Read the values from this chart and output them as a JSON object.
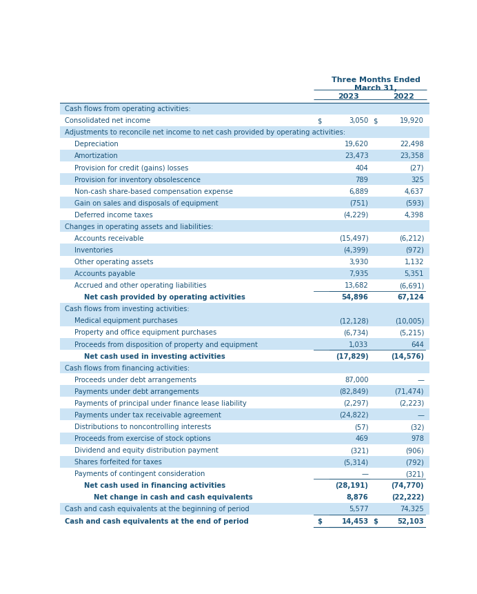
{
  "header_line1": "Three Months Ended",
  "header_line2": "March 31,",
  "col2023": "2023",
  "col2022": "2022",
  "rows": [
    {
      "label": "Cash flows from operating activities:",
      "val2023": "",
      "val2022": "",
      "indent": 0,
      "style": "section",
      "highlight": true,
      "top_border": true
    },
    {
      "label": "Consolidated net income",
      "val2023": "3,050",
      "val2022": "19,920",
      "indent": 0,
      "style": "normal",
      "highlight": false,
      "dollar2023": true,
      "dollar2022": true
    },
    {
      "label": "Adjustments to reconcile net income to net cash provided by operating activities:",
      "val2023": "",
      "val2022": "",
      "indent": 0,
      "style": "section",
      "highlight": true
    },
    {
      "label": "Depreciation",
      "val2023": "19,620",
      "val2022": "22,498",
      "indent": 1,
      "style": "normal",
      "highlight": false
    },
    {
      "label": "Amortization",
      "val2023": "23,473",
      "val2022": "23,358",
      "indent": 1,
      "style": "normal",
      "highlight": true
    },
    {
      "label": "Provision for credit (gains) losses",
      "val2023": "404",
      "val2022": "(27)",
      "indent": 1,
      "style": "normal",
      "highlight": false
    },
    {
      "label": "Provision for inventory obsolescence",
      "val2023": "789",
      "val2022": "325",
      "indent": 1,
      "style": "normal",
      "highlight": true
    },
    {
      "label": "Non-cash share-based compensation expense",
      "val2023": "6,889",
      "val2022": "4,637",
      "indent": 1,
      "style": "normal",
      "highlight": false
    },
    {
      "label": "Gain on sales and disposals of equipment",
      "val2023": "(751)",
      "val2022": "(593)",
      "indent": 1,
      "style": "normal",
      "highlight": true
    },
    {
      "label": "Deferred income taxes",
      "val2023": "(4,229)",
      "val2022": "4,398",
      "indent": 1,
      "style": "normal",
      "highlight": false
    },
    {
      "label": "Changes in operating assets and liabilities:",
      "val2023": "",
      "val2022": "",
      "indent": 0,
      "style": "section",
      "highlight": true
    },
    {
      "label": "Accounts receivable",
      "val2023": "(15,497)",
      "val2022": "(6,212)",
      "indent": 1,
      "style": "normal",
      "highlight": false
    },
    {
      "label": "Inventories",
      "val2023": "(4,399)",
      "val2022": "(972)",
      "indent": 1,
      "style": "normal",
      "highlight": true
    },
    {
      "label": "Other operating assets",
      "val2023": "3,930",
      "val2022": "1,132",
      "indent": 1,
      "style": "normal",
      "highlight": false
    },
    {
      "label": "Accounts payable",
      "val2023": "7,935",
      "val2022": "5,351",
      "indent": 1,
      "style": "normal",
      "highlight": true
    },
    {
      "label": "Accrued and other operating liabilities",
      "val2023": "13,682",
      "val2022": "(6,691)",
      "indent": 1,
      "style": "normal",
      "highlight": false
    },
    {
      "label": "Net cash provided by operating activities",
      "val2023": "54,896",
      "val2022": "67,124",
      "indent": 2,
      "style": "subtotal",
      "highlight": false,
      "top_border": true
    },
    {
      "label": "Cash flows from investing activities:",
      "val2023": "",
      "val2022": "",
      "indent": 0,
      "style": "section",
      "highlight": true
    },
    {
      "label": "Medical equipment purchases",
      "val2023": "(12,128)",
      "val2022": "(10,005)",
      "indent": 1,
      "style": "normal",
      "highlight": true
    },
    {
      "label": "Property and office equipment purchases",
      "val2023": "(6,734)",
      "val2022": "(5,215)",
      "indent": 1,
      "style": "normal",
      "highlight": false
    },
    {
      "label": "Proceeds from disposition of property and equipment",
      "val2023": "1,033",
      "val2022": "644",
      "indent": 1,
      "style": "normal",
      "highlight": true
    },
    {
      "label": "Net cash used in investing activities",
      "val2023": "(17,829)",
      "val2022": "(14,576)",
      "indent": 2,
      "style": "subtotal",
      "highlight": false,
      "top_border": true
    },
    {
      "label": "Cash flows from financing activities:",
      "val2023": "",
      "val2022": "",
      "indent": 0,
      "style": "section",
      "highlight": true
    },
    {
      "label": "Proceeds under debt arrangements",
      "val2023": "87,000",
      "val2022": "—",
      "indent": 1,
      "style": "normal",
      "highlight": false
    },
    {
      "label": "Payments under debt arrangements",
      "val2023": "(82,849)",
      "val2022": "(71,474)",
      "indent": 1,
      "style": "normal",
      "highlight": true
    },
    {
      "label": "Payments of principal under finance lease liability",
      "val2023": "(2,297)",
      "val2022": "(2,223)",
      "indent": 1,
      "style": "normal",
      "highlight": false
    },
    {
      "label": "Payments under tax receivable agreement",
      "val2023": "(24,822)",
      "val2022": "—",
      "indent": 1,
      "style": "normal",
      "highlight": true
    },
    {
      "label": "Distributions to noncontrolling interests",
      "val2023": "(57)",
      "val2022": "(32)",
      "indent": 1,
      "style": "normal",
      "highlight": false
    },
    {
      "label": "Proceeds from exercise of stock options",
      "val2023": "469",
      "val2022": "978",
      "indent": 1,
      "style": "normal",
      "highlight": true
    },
    {
      "label": "Dividend and equity distribution payment",
      "val2023": "(321)",
      "val2022": "(906)",
      "indent": 1,
      "style": "normal",
      "highlight": false
    },
    {
      "label": "Shares forfeited for taxes",
      "val2023": "(5,314)",
      "val2022": "(792)",
      "indent": 1,
      "style": "normal",
      "highlight": true
    },
    {
      "label": "Payments of contingent consideration",
      "val2023": "—",
      "val2022": "(321)",
      "indent": 1,
      "style": "normal",
      "highlight": false,
      "bottom_border": true
    },
    {
      "label": "Net cash used in financing activities",
      "val2023": "(28,191)",
      "val2022": "(74,770)",
      "indent": 2,
      "style": "subtotal",
      "highlight": false
    },
    {
      "label": "Net change in cash and cash equivalents",
      "val2023": "8,876",
      "val2022": "(22,222)",
      "indent": 3,
      "style": "subtotal",
      "highlight": false
    },
    {
      "label": "Cash and cash equivalents at the beginning of period",
      "val2023": "5,577",
      "val2022": "74,325",
      "indent": 0,
      "style": "normal",
      "highlight": true
    },
    {
      "label": "Cash and cash equivalents at the end of period",
      "val2023": "14,453",
      "val2022": "52,103",
      "indent": 0,
      "style": "final",
      "highlight": false,
      "dollar2023": true,
      "dollar2022": true,
      "top_border": true
    }
  ],
  "bg_color": "#ffffff",
  "highlight_color": "#cce4f5",
  "text_color": "#1a5276",
  "font_size": 7.2,
  "header_rows": 4,
  "total_rows": 36
}
